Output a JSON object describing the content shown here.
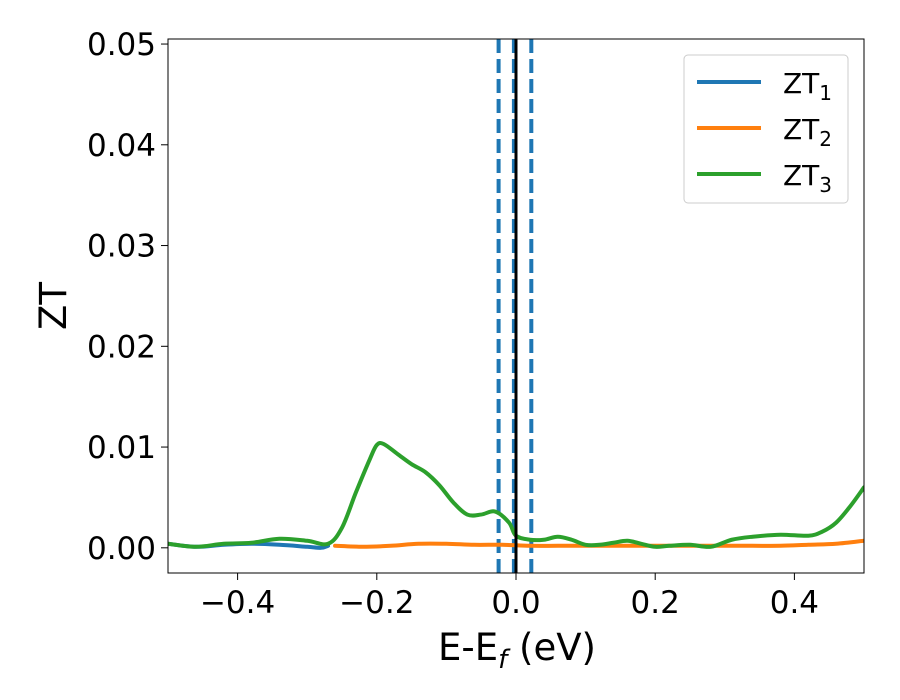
{
  "chart_data": {
    "type": "line",
    "xlabel": "E-E",
    "xlabel_sub": "f",
    "xlabel_unit": " (eV)",
    "ylabel": "ZT",
    "xlim": [
      -0.5,
      0.5
    ],
    "ylim": [
      -0.0025,
      0.0505
    ],
    "x_ticks": [
      -0.4,
      -0.2,
      0.0,
      0.2,
      0.4
    ],
    "x_tick_labels": [
      "−0.4",
      "−0.2",
      "0.0",
      "0.2",
      "0.4"
    ],
    "y_ticks": [
      0.0,
      0.01,
      0.02,
      0.03,
      0.04,
      0.05
    ],
    "y_tick_labels": [
      "0.00",
      "0.01",
      "0.02",
      "0.03",
      "0.04",
      "0.05"
    ],
    "grid": false,
    "legend_position": "top-right",
    "vlines": [
      {
        "x": -0.025,
        "style": "dashed",
        "color": "#1f77b4"
      },
      {
        "x": -0.003,
        "style": "dashed",
        "color": "#1f77b4"
      },
      {
        "x": 0.0,
        "style": "solid",
        "color": "#000000"
      },
      {
        "x": 0.022,
        "style": "dashed",
        "color": "#1f77b4"
      }
    ],
    "series": [
      {
        "name": "ZT",
        "sub": "1",
        "color": "#1f77b4",
        "x": [
          -0.5,
          -0.46,
          -0.42,
          -0.38,
          -0.34,
          -0.3,
          -0.28,
          -0.27
        ],
        "y": [
          0.0004,
          0.0001,
          0.0003,
          0.0004,
          0.0003,
          0.0001,
          0.0,
          0.0002
        ]
      },
      {
        "name": "ZT",
        "sub": "2",
        "color": "#ff7f0e",
        "x": [
          -0.26,
          -0.22,
          -0.18,
          -0.14,
          -0.1,
          -0.06,
          -0.02,
          0.02,
          0.06,
          0.1,
          0.14,
          0.18,
          0.22,
          0.26,
          0.3,
          0.34,
          0.38,
          0.42,
          0.46,
          0.5
        ],
        "y": [
          0.0002,
          0.0001,
          0.0002,
          0.0004,
          0.0004,
          0.0003,
          0.0003,
          0.0002,
          0.0002,
          0.0002,
          0.0002,
          0.0002,
          0.0002,
          0.0002,
          0.0002,
          0.0002,
          0.0002,
          0.0003,
          0.0004,
          0.0007
        ]
      },
      {
        "name": "ZT",
        "sub": "3",
        "color": "#2ca02c",
        "x": [
          -0.5,
          -0.46,
          -0.42,
          -0.38,
          -0.34,
          -0.3,
          -0.27,
          -0.25,
          -0.23,
          -0.21,
          -0.2,
          -0.19,
          -0.17,
          -0.15,
          -0.13,
          -0.11,
          -0.09,
          -0.07,
          -0.05,
          -0.03,
          -0.01,
          0.0,
          0.02,
          0.04,
          0.06,
          0.08,
          0.1,
          0.12,
          0.14,
          0.16,
          0.18,
          0.2,
          0.22,
          0.25,
          0.28,
          0.31,
          0.34,
          0.38,
          0.42,
          0.44,
          0.46,
          0.48,
          0.5
        ],
        "y": [
          0.0004,
          0.0001,
          0.0004,
          0.0005,
          0.0009,
          0.0007,
          0.0004,
          0.002,
          0.0055,
          0.0088,
          0.0102,
          0.0103,
          0.0093,
          0.0083,
          0.0075,
          0.0062,
          0.0045,
          0.0033,
          0.0033,
          0.0036,
          0.0025,
          0.0012,
          0.0008,
          0.0008,
          0.0011,
          0.0008,
          0.0003,
          0.0003,
          0.0005,
          0.0007,
          0.0004,
          0.0001,
          0.0002,
          0.0003,
          0.0001,
          0.0008,
          0.0011,
          0.0013,
          0.0012,
          0.0016,
          0.0025,
          0.0041,
          0.006
        ]
      }
    ]
  }
}
